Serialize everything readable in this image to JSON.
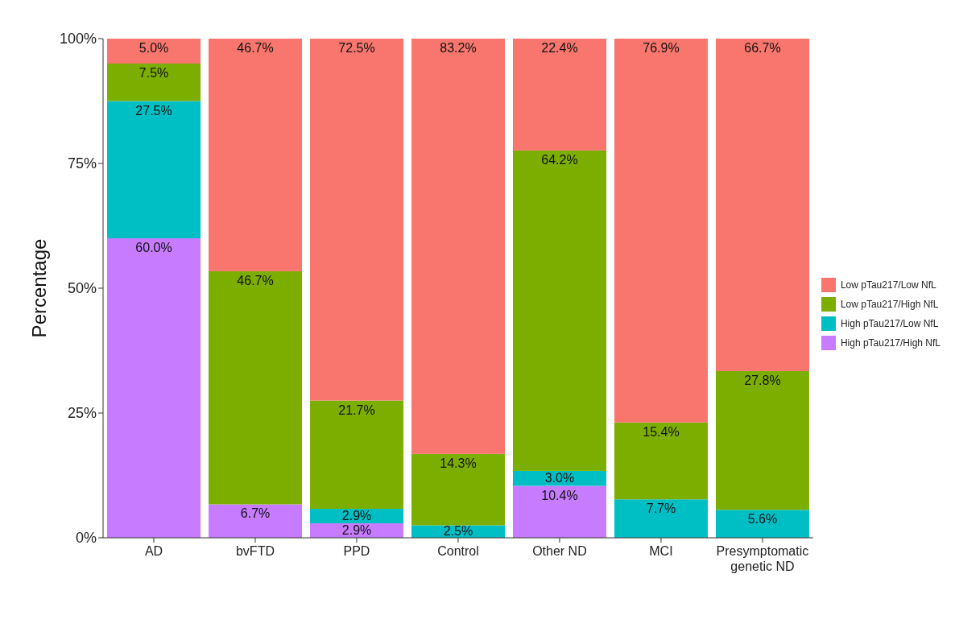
{
  "chart_data": {
    "type": "bar",
    "stacked": true,
    "ylabel": "Percentage",
    "categories": [
      "AD",
      "bvFTD",
      "PPD",
      "Control",
      "Other ND",
      "MCI",
      "Presymptomatic genetic ND"
    ],
    "ylim": [
      0,
      100
    ],
    "yticks": [
      {
        "value": 0,
        "label": "0%"
      },
      {
        "value": 25,
        "label": "25%"
      },
      {
        "value": 50,
        "label": "50%"
      },
      {
        "value": 75,
        "label": "75%"
      },
      {
        "value": 100,
        "label": "100%"
      }
    ],
    "grid": false,
    "legend": "right",
    "series": [
      {
        "name": "High pTau217/High NfL",
        "color": "#c77cff",
        "values": [
          60.0,
          6.7,
          2.9,
          0,
          10.4,
          0,
          0
        ],
        "value_labels": [
          "60.0%",
          "6.7%",
          "2.9%",
          null,
          "10.4%",
          null,
          null
        ]
      },
      {
        "name": "High pTau217/Low NfL",
        "color": "#00bfc4",
        "values": [
          27.5,
          0,
          2.9,
          2.5,
          3.0,
          7.7,
          5.6
        ],
        "value_labels": [
          "27.5%",
          null,
          "2.9%",
          "2.5%",
          "3.0%",
          "7.7%",
          "5.6%"
        ]
      },
      {
        "name": "Low pTau217/High NfL",
        "color": "#7cae00",
        "values": [
          7.5,
          46.7,
          21.7,
          14.3,
          64.2,
          15.4,
          27.8
        ],
        "value_labels": [
          "7.5%",
          "46.7%",
          "21.7%",
          "14.3%",
          "64.2%",
          "15.4%",
          "27.8%"
        ]
      },
      {
        "name": "Low pTau217/Low NfL",
        "color": "#f8766d",
        "values": [
          5.0,
          46.7,
          72.5,
          83.2,
          22.4,
          76.9,
          66.7
        ],
        "value_labels": [
          "5.0%",
          "46.7%",
          "72.5%",
          "83.2%",
          "22.4%",
          "76.9%",
          "66.7%"
        ]
      }
    ]
  }
}
